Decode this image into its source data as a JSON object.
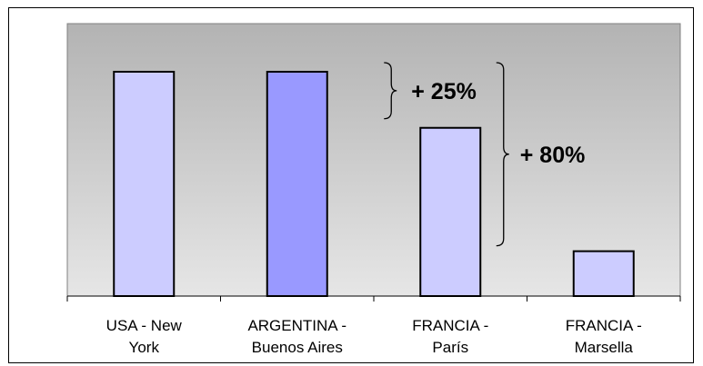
{
  "chart_data": {
    "type": "bar",
    "categories": [
      [
        "USA - New",
        "York"
      ],
      [
        "ARGENTINA -",
        "Buenos Aires"
      ],
      [
        "FRANCIA -",
        "París"
      ],
      [
        "FRANCIA -",
        "Marsella"
      ]
    ],
    "values": [
      100,
      100,
      75,
      20
    ],
    "ylim": [
      0,
      100
    ],
    "colors": [
      "#ccccff",
      "#9999ff",
      "#ccccff",
      "#ccccff"
    ],
    "plot_background": [
      "#b3b3b3",
      "#e6e6e6"
    ],
    "grid": false,
    "annotations": [
      {
        "text": "+ 25%",
        "from_bar": 1,
        "to_bar": 2
      },
      {
        "text": "+ 80%",
        "from_bar": 1,
        "to_bar": 3
      }
    ]
  }
}
